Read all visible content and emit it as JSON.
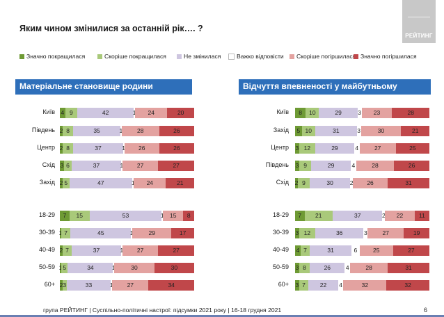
{
  "title": "Яким чином змінилися за останній рік…. ?",
  "logo": "РЕЙТИНГ",
  "footer": "група РЕЙТИНГ | Суспільно-політичні настрої: підсумки 2021 року | 16-18 грудня 2021",
  "page_number": "6",
  "colors": {
    "section_bg": "#2e6fba",
    "series": [
      "#6e9a34",
      "#a9c97a",
      "#cec6e0",
      "#ffffff",
      "#e3a2a0",
      "#c0474a"
    ]
  },
  "chart_data": {
    "type": "bar",
    "stacked": true,
    "orientation": "horizontal",
    "series": [
      {
        "name": "Значно покращилася"
      },
      {
        "name": "Скоріше покращилася"
      },
      {
        "name": "Не змінилася"
      },
      {
        "name": "Важко відповісти"
      },
      {
        "name": "Скоріше погіршилася"
      },
      {
        "name": "Значно погіршилася"
      }
    ],
    "panels": [
      {
        "title": "Матеріальне становище родини",
        "groups": [
          {
            "rows": [
              {
                "label": "Київ",
                "values": [
                  4,
                  9,
                  42,
                  1,
                  24,
                  20
                ]
              },
              {
                "label": "Південь",
                "values": [
                  2,
                  8,
                  35,
                  1,
                  28,
                  26
                ]
              },
              {
                "label": "Центр",
                "values": [
                  2,
                  8,
                  37,
                  1,
                  26,
                  26
                ]
              },
              {
                "label": "Схід",
                "values": [
                  3,
                  6,
                  37,
                  1,
                  27,
                  27
                ]
              },
              {
                "label": "Захід",
                "values": [
                  2,
                  5,
                  47,
                  1,
                  24,
                  21
                ]
              }
            ]
          },
          {
            "rows": [
              {
                "label": "18-29",
                "values": [
                  7,
                  15,
                  53,
                  1,
                  15,
                  8
                ]
              },
              {
                "label": "30-39",
                "values": [
                  1,
                  7,
                  45,
                  1,
                  29,
                  17
                ]
              },
              {
                "label": "40-49",
                "values": [
                  2,
                  7,
                  37,
                  1,
                  27,
                  27
                ]
              },
              {
                "label": "50-59",
                "values": [
                  1,
                  5,
                  34,
                  1,
                  30,
                  30
                ]
              },
              {
                "label": "60+",
                "values": [
                  2,
                  3,
                  33,
                  1,
                  27,
                  34
                ]
              }
            ]
          }
        ]
      },
      {
        "title": "Відчуття впевненості у майбутньому",
        "groups": [
          {
            "rows": [
              {
                "label": "Київ",
                "values": [
                  8,
                  10,
                  29,
                  3,
                  23,
                  28
                ]
              },
              {
                "label": "Захід",
                "values": [
                  5,
                  10,
                  31,
                  3,
                  30,
                  21
                ]
              },
              {
                "label": "Центр",
                "values": [
                  3,
                  12,
                  29,
                  4,
                  27,
                  25
                ]
              },
              {
                "label": "Південь",
                "values": [
                  3,
                  9,
                  29,
                  4,
                  28,
                  26
                ]
              },
              {
                "label": "Схід",
                "values": [
                  2,
                  9,
                  30,
                  2,
                  26,
                  31
                ]
              }
            ]
          },
          {
            "rows": [
              {
                "label": "18-29",
                "values": [
                  7,
                  21,
                  37,
                  2,
                  22,
                  11
                ]
              },
              {
                "label": "30-39",
                "values": [
                  3,
                  12,
                  36,
                  3,
                  27,
                  19
                ]
              },
              {
                "label": "40-49",
                "values": [
                  4,
                  7,
                  31,
                  6,
                  25,
                  27
                ]
              },
              {
                "label": "50-59",
                "values": [
                  3,
                  8,
                  26,
                  4,
                  28,
                  31
                ]
              },
              {
                "label": "60+",
                "values": [
                  3,
                  7,
                  22,
                  4,
                  32,
                  32
                ]
              }
            ]
          }
        ]
      }
    ]
  }
}
